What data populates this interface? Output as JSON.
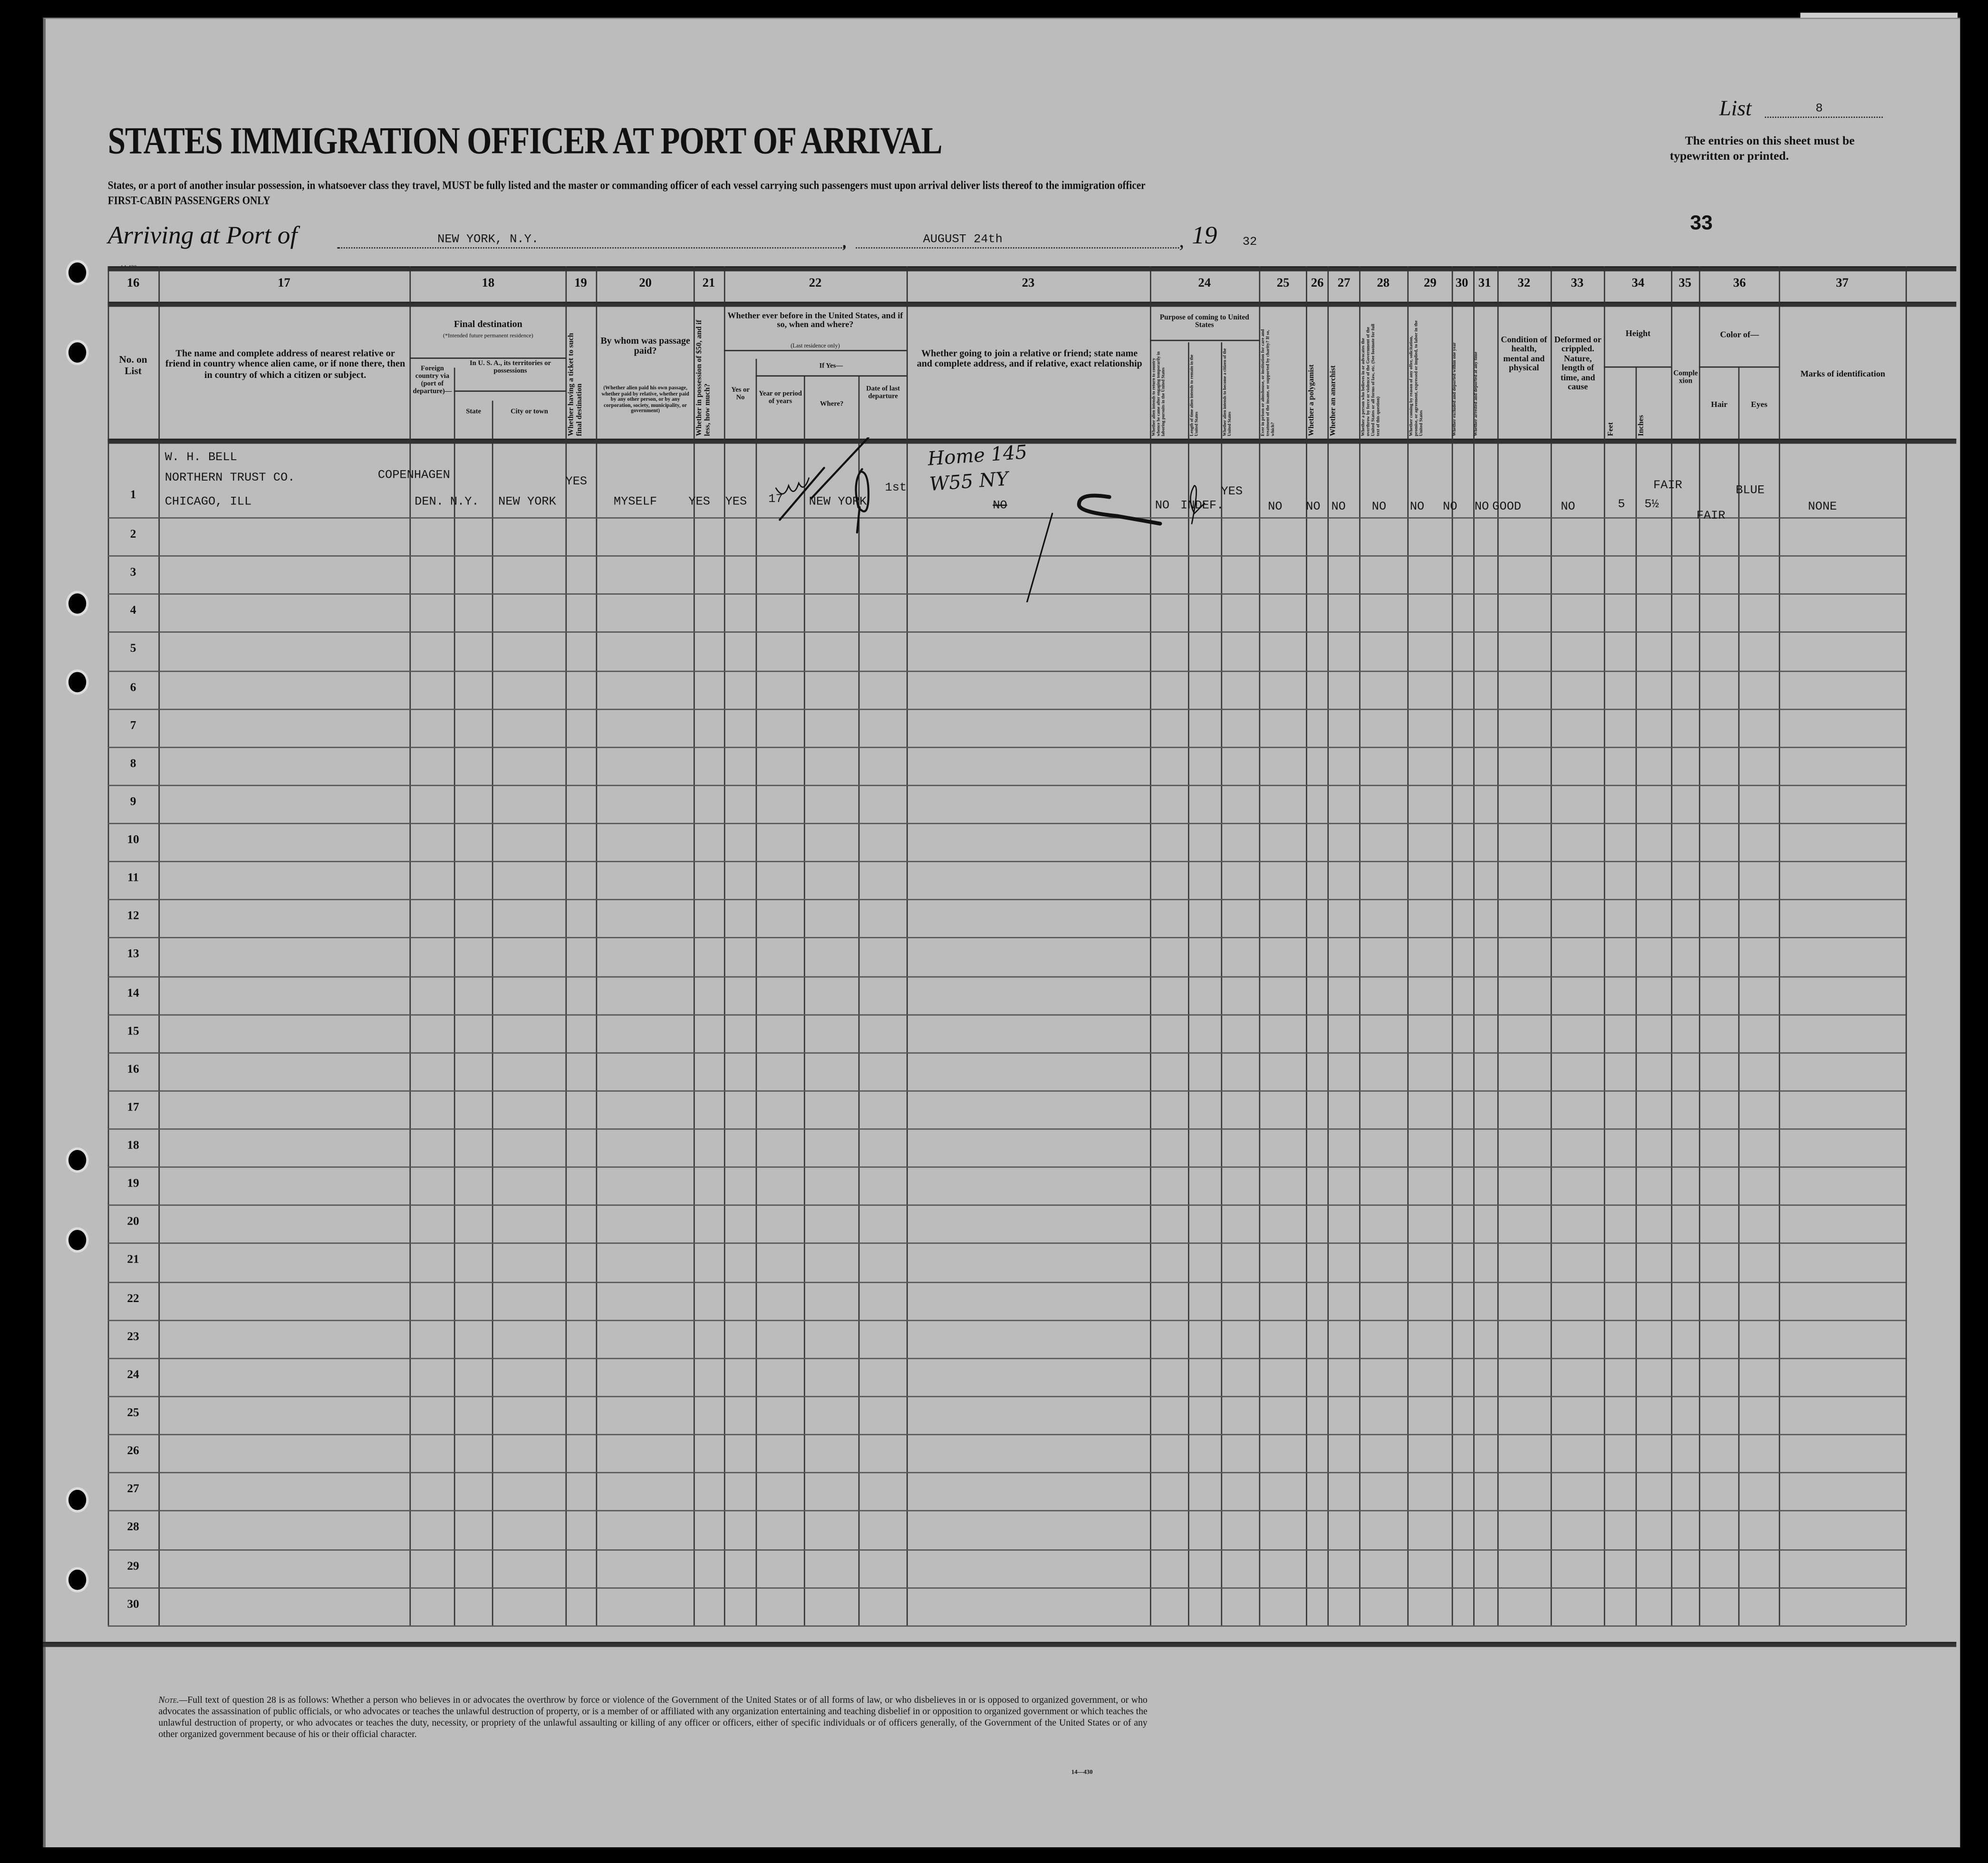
{
  "header": {
    "title": "STATES IMMIGRATION OFFICER AT PORT OF ARRIVAL",
    "subtitle": "States, or a port of another insular possession, in whatsoever class they travel, MUST be fully listed and the master or commanding officer of each vessel carrying such passengers must upon arrival deliver lists thereof to the immigration officer",
    "class_line": "FIRST-CABIN PASSENGERS ONLY",
    "list_label": "List",
    "list_number": "8",
    "instruction": "The entries on this sheet must be typewritten or printed.",
    "sheet_number": "33",
    "arriving_label": "Arriving at Port of",
    "port": "NEW YORK, N.Y.",
    "date": "AUGUST 24th",
    "year_prefix": "19",
    "year_suffix": "32",
    "form_code": "14-430"
  },
  "columns": {
    "numbers": [
      "16",
      "17",
      "18",
      "19",
      "20",
      "21",
      "22",
      "23",
      "24",
      "25",
      "26",
      "27",
      "28",
      "29",
      "30",
      "31",
      "32",
      "33",
      "34",
      "35",
      "36",
      "37"
    ],
    "c16": "No. on List",
    "c17": "The name and complete address of nearest relative or friend in country whence alien came, or if none there, then in country of which a citizen or subject.",
    "c18": "Final destination",
    "c18_note": "(*Intended future permanent residence)",
    "c18_foreign": "Foreign country via (port of departure)—",
    "c18_usa": "In U. S. A., its territories or possessions",
    "c18_state": "State",
    "c18_city": "City or town",
    "c19": "Whether having a ticket to such final destination",
    "c20": "By whom was passage paid?",
    "c20_note": "(Whether alien paid his own passage, whether paid by relative, whether paid by any other person, or by any corporation, society, municipality, or government)",
    "c21": "Whether in possession of $50, and if less, how much?",
    "c22": "Whether ever before in the United States, and if so, when and where?",
    "c22_note": "(Last residence only)",
    "c22_yesno": "Yes or No",
    "c22_ifyes": "If Yes—",
    "c22_year": "Year or period of years",
    "c22_where": "Where?",
    "c22_date": "Date of last departure",
    "c23": "Whether going to join a relative or friend; state name and complete address, and if relative, exact relationship",
    "c24": "Purpose of coming to United States",
    "c24_a": "Whether alien intends to return to country whence he came after engaging temporarily in laboring pursuits in the United States",
    "c24_b": "Length of time alien intends to remain in the United States",
    "c24_c": "Whether alien intends to become a citizen of the United States",
    "c25": "Ever in prison or almshouse, or institution for care and treatment of the insane, or supported by charity? If so, which?",
    "c26": "Whether a polygamist",
    "c27": "Whether an anarchist",
    "c28": "Whether a person who believes in or advocates the overthrow by force or violence of the Government of the United States or all forms of law, etc. (See footnote for full text of this question)",
    "c29": "Whether coming by reason of any offer, solicitation, promise, or agreement, expressed or implied, to labor in the United States",
    "c30": "Whether excluded and deported within one year",
    "c31": "Whether arrested and deported at any time",
    "c32": "Condition of health, mental and physical",
    "c33": "Deformed or crippled. Nature, length of time, and cause",
    "c34": "Height",
    "c34_feet": "Feet",
    "c34_inches": "Inches",
    "c35": "Complexion",
    "c36": "Color of—",
    "c36_hair": "Hair",
    "c36_eyes": "Eyes",
    "c37": "Marks of identification"
  },
  "row_numbers": [
    "1",
    "2",
    "3",
    "4",
    "5",
    "6",
    "7",
    "8",
    "9",
    "10",
    "11",
    "12",
    "13",
    "14",
    "15",
    "16",
    "17",
    "18",
    "19",
    "20",
    "21",
    "22",
    "23",
    "24",
    "25",
    "26",
    "27",
    "28",
    "29",
    "30"
  ],
  "entry": {
    "relative_name": "W. H. BELL",
    "relative_addr1": "NORTHERN TRUST CO.",
    "relative_addr2": "CHICAGO, ILL",
    "foreign_country": "COPENHAGEN",
    "foreign_country2": "DEN.",
    "state": "N.Y.",
    "city": "NEW YORK",
    "ticket": "YES",
    "passage_paid_by": "MYSELF",
    "fifty_dollars": "YES",
    "before_in_us": "YES",
    "years": "17",
    "where": "NEW YORK",
    "last_departure": "1st",
    "joining": "NO",
    "handwritten_joining": "Home 145 W55 NY",
    "return_intent": "NO",
    "length_of_stay": "INDEF.",
    "become_citizen": "YES",
    "prison": "NO",
    "polygamist": "NO",
    "anarchist": "NO",
    "q28": "NO",
    "labor_offer": "NO",
    "excluded": "NO",
    "arrested": "NO",
    "health": "GOOD",
    "deformed": "NO",
    "height_feet": "5",
    "height_inches": "5½",
    "complexion": "FAIR",
    "hair": "FAIR",
    "eyes": "BLUE",
    "marks": "NONE"
  },
  "footnote": {
    "lead": "Note.—",
    "text": "Full text of question 28 is as follows: Whether a person who believes in or advocates the overthrow by force or violence of the Government of the United States or of all forms of law, or who disbelieves in or is opposed to organized government, or who advocates the assassination of public officials, or who advocates or teaches the unlawful destruction of property, or is a member of or affiliated with any organization entertaining and teaching disbelief in or opposition to organized government or which teaches the unlawful destruction of property, or who advocates or teaches the duty, necessity, or propriety of the unlawful assaulting or killing of any officer or officers, either of specific individuals or of officers generally, of the Government of the United States or of any other organized government because of his or their official character.",
    "code": "14—430"
  }
}
